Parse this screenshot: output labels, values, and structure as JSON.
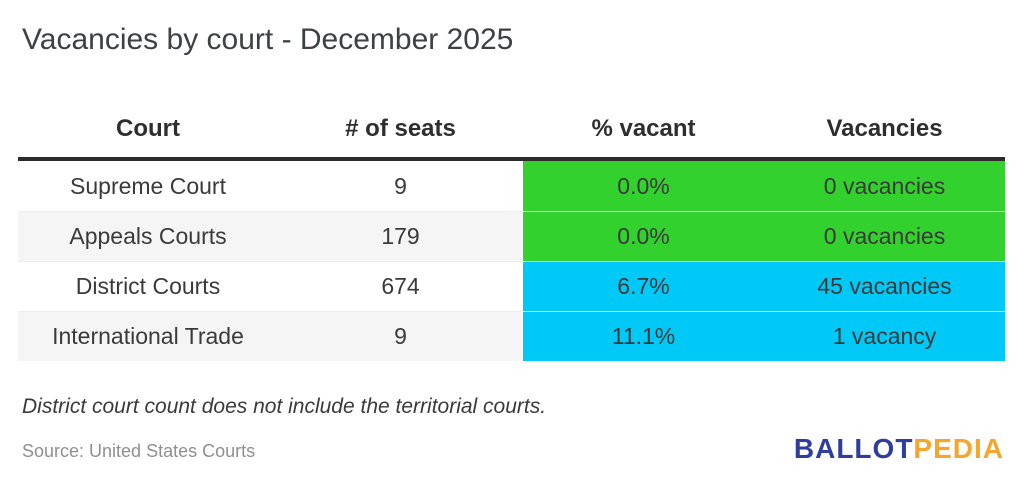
{
  "title": "Vacancies by court - December 2025",
  "table": {
    "headers": [
      "Court",
      "# of seats",
      "% vacant",
      "Vacancies"
    ],
    "rows": [
      {
        "court": "Supreme Court",
        "seats": "9",
        "pct_vacant": "0.0%",
        "vacancies": "0 vacancies",
        "status_color": "#33D12E"
      },
      {
        "court": "Appeals Courts",
        "seats": "179",
        "pct_vacant": "0.0%",
        "vacancies": "0 vacancies",
        "status_color": "#33D12E"
      },
      {
        "court": "District Courts",
        "seats": "674",
        "pct_vacant": "6.7%",
        "vacancies": "45 vacancies",
        "status_color": "#00C9F7"
      },
      {
        "court": "International Trade",
        "seats": "9",
        "pct_vacant": "11.1%",
        "vacancies": "1 vacancy",
        "status_color": "#00C9F7"
      }
    ]
  },
  "note": "District court count does not include the territorial courts.",
  "source": "Source: United States Courts",
  "logo": {
    "part1": "BALLOT",
    "part2": "PEDIA",
    "blue_hex": "#2F3E9E",
    "orange_hex": "#F5A62B"
  },
  "colors": {
    "no_vacancy_green": "#33D12E",
    "vacancy_cyan": "#00C9F7",
    "alt_row_gray": "#f5f5f5",
    "header_rule_dark": "#2b2b2b"
  },
  "chart_data": {
    "type": "table",
    "title": "Vacancies by court - December 2025",
    "columns": [
      "Court",
      "# of seats",
      "% vacant",
      "Vacancies"
    ],
    "rows": [
      [
        "Supreme Court",
        9,
        "0.0%",
        "0 vacancies"
      ],
      [
        "Appeals Courts",
        179,
        "0.0%",
        "0 vacancies"
      ],
      [
        "District Courts",
        674,
        "6.7%",
        "45 vacancies"
      ],
      [
        "International Trade",
        9,
        "11.1%",
        "1 vacancy"
      ]
    ],
    "numeric": {
      "seats": [
        9,
        179,
        674,
        9
      ],
      "pct_vacant": [
        0.0,
        0.0,
        6.7,
        11.1
      ],
      "vacancy_counts": [
        0,
        0,
        45,
        1
      ]
    },
    "highlight": [
      "green",
      "green",
      "cyan",
      "cyan"
    ],
    "note": "District court count does not include the territorial courts.",
    "source": "United States Courts"
  }
}
